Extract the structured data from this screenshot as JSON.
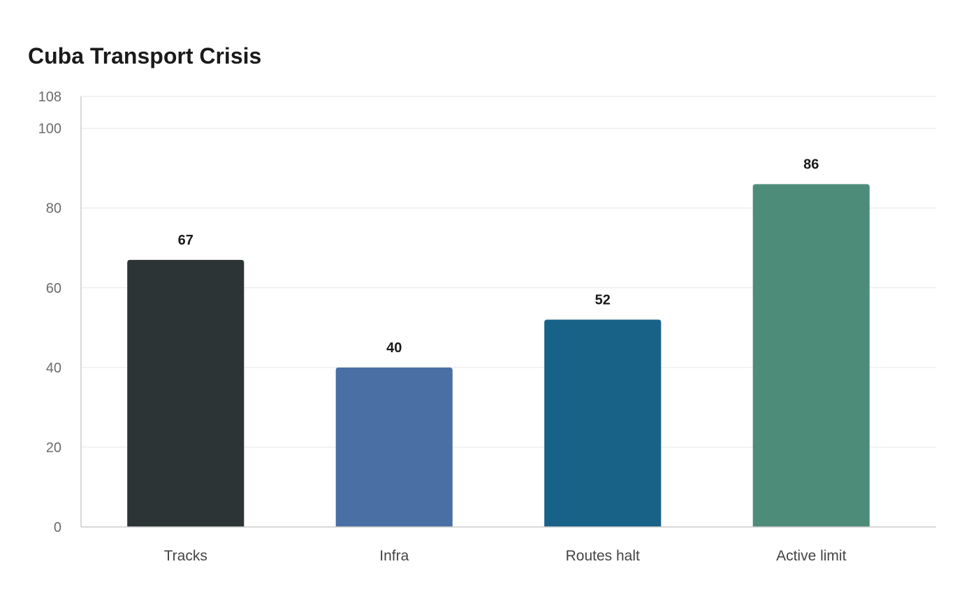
{
  "chart_data": {
    "type": "bar",
    "title": "Cuba Transport Crisis",
    "xlabel": "",
    "ylabel": "",
    "categories": [
      "Tracks",
      "Infra",
      "Routes halt",
      "Active limit"
    ],
    "values": [
      67,
      40,
      52,
      86
    ],
    "colors": [
      "#2d3436",
      "#4a6fa5",
      "#186288",
      "#4e8c7a"
    ],
    "ylim": [
      0,
      108
    ],
    "yticks": [
      0,
      20,
      40,
      60,
      80,
      100,
      108
    ],
    "grid": true,
    "data_labels": true
  }
}
